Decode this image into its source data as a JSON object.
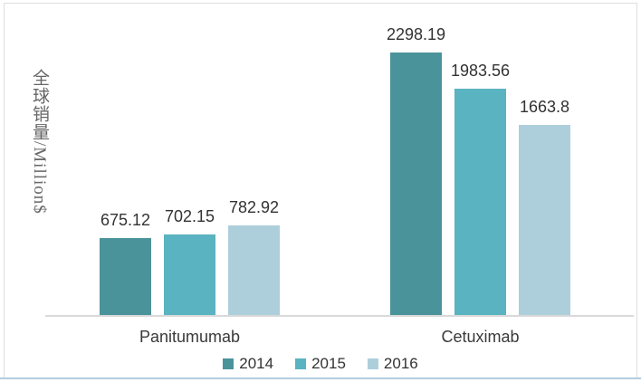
{
  "chart_data": {
    "type": "bar",
    "title": "",
    "ylabel": "全球销量/Million$",
    "xlabel": "",
    "categories": [
      "Panitumumab",
      "Cetuximab"
    ],
    "series": [
      {
        "name": "2014",
        "color": "#4b939b",
        "values": [
          675.12,
          2298.19
        ],
        "labels": [
          "675.12",
          "2298.19"
        ]
      },
      {
        "name": "2015",
        "color": "#5ab3c0",
        "values": [
          702.15,
          1983.56
        ],
        "labels": [
          "702.15",
          "1983.56"
        ]
      },
      {
        "name": "2016",
        "color": "#adcfdc",
        "values": [
          782.92,
          1663.8
        ],
        "labels": [
          "782.92",
          "1663.8"
        ]
      }
    ],
    "ylim": [
      0,
      2298.19
    ],
    "grid": false,
    "legend_position": "bottom",
    "value_labels_shown": true
  },
  "colors": {
    "background": "#ffffff",
    "axis_line": "#d9d9d9",
    "value_text": "#323232",
    "category_text": "#3a3a3a",
    "legend_text": "#333333",
    "ylabel_text": "#666666",
    "frame_border": "#dedede",
    "bottom_accent": "#b3cde0"
  }
}
